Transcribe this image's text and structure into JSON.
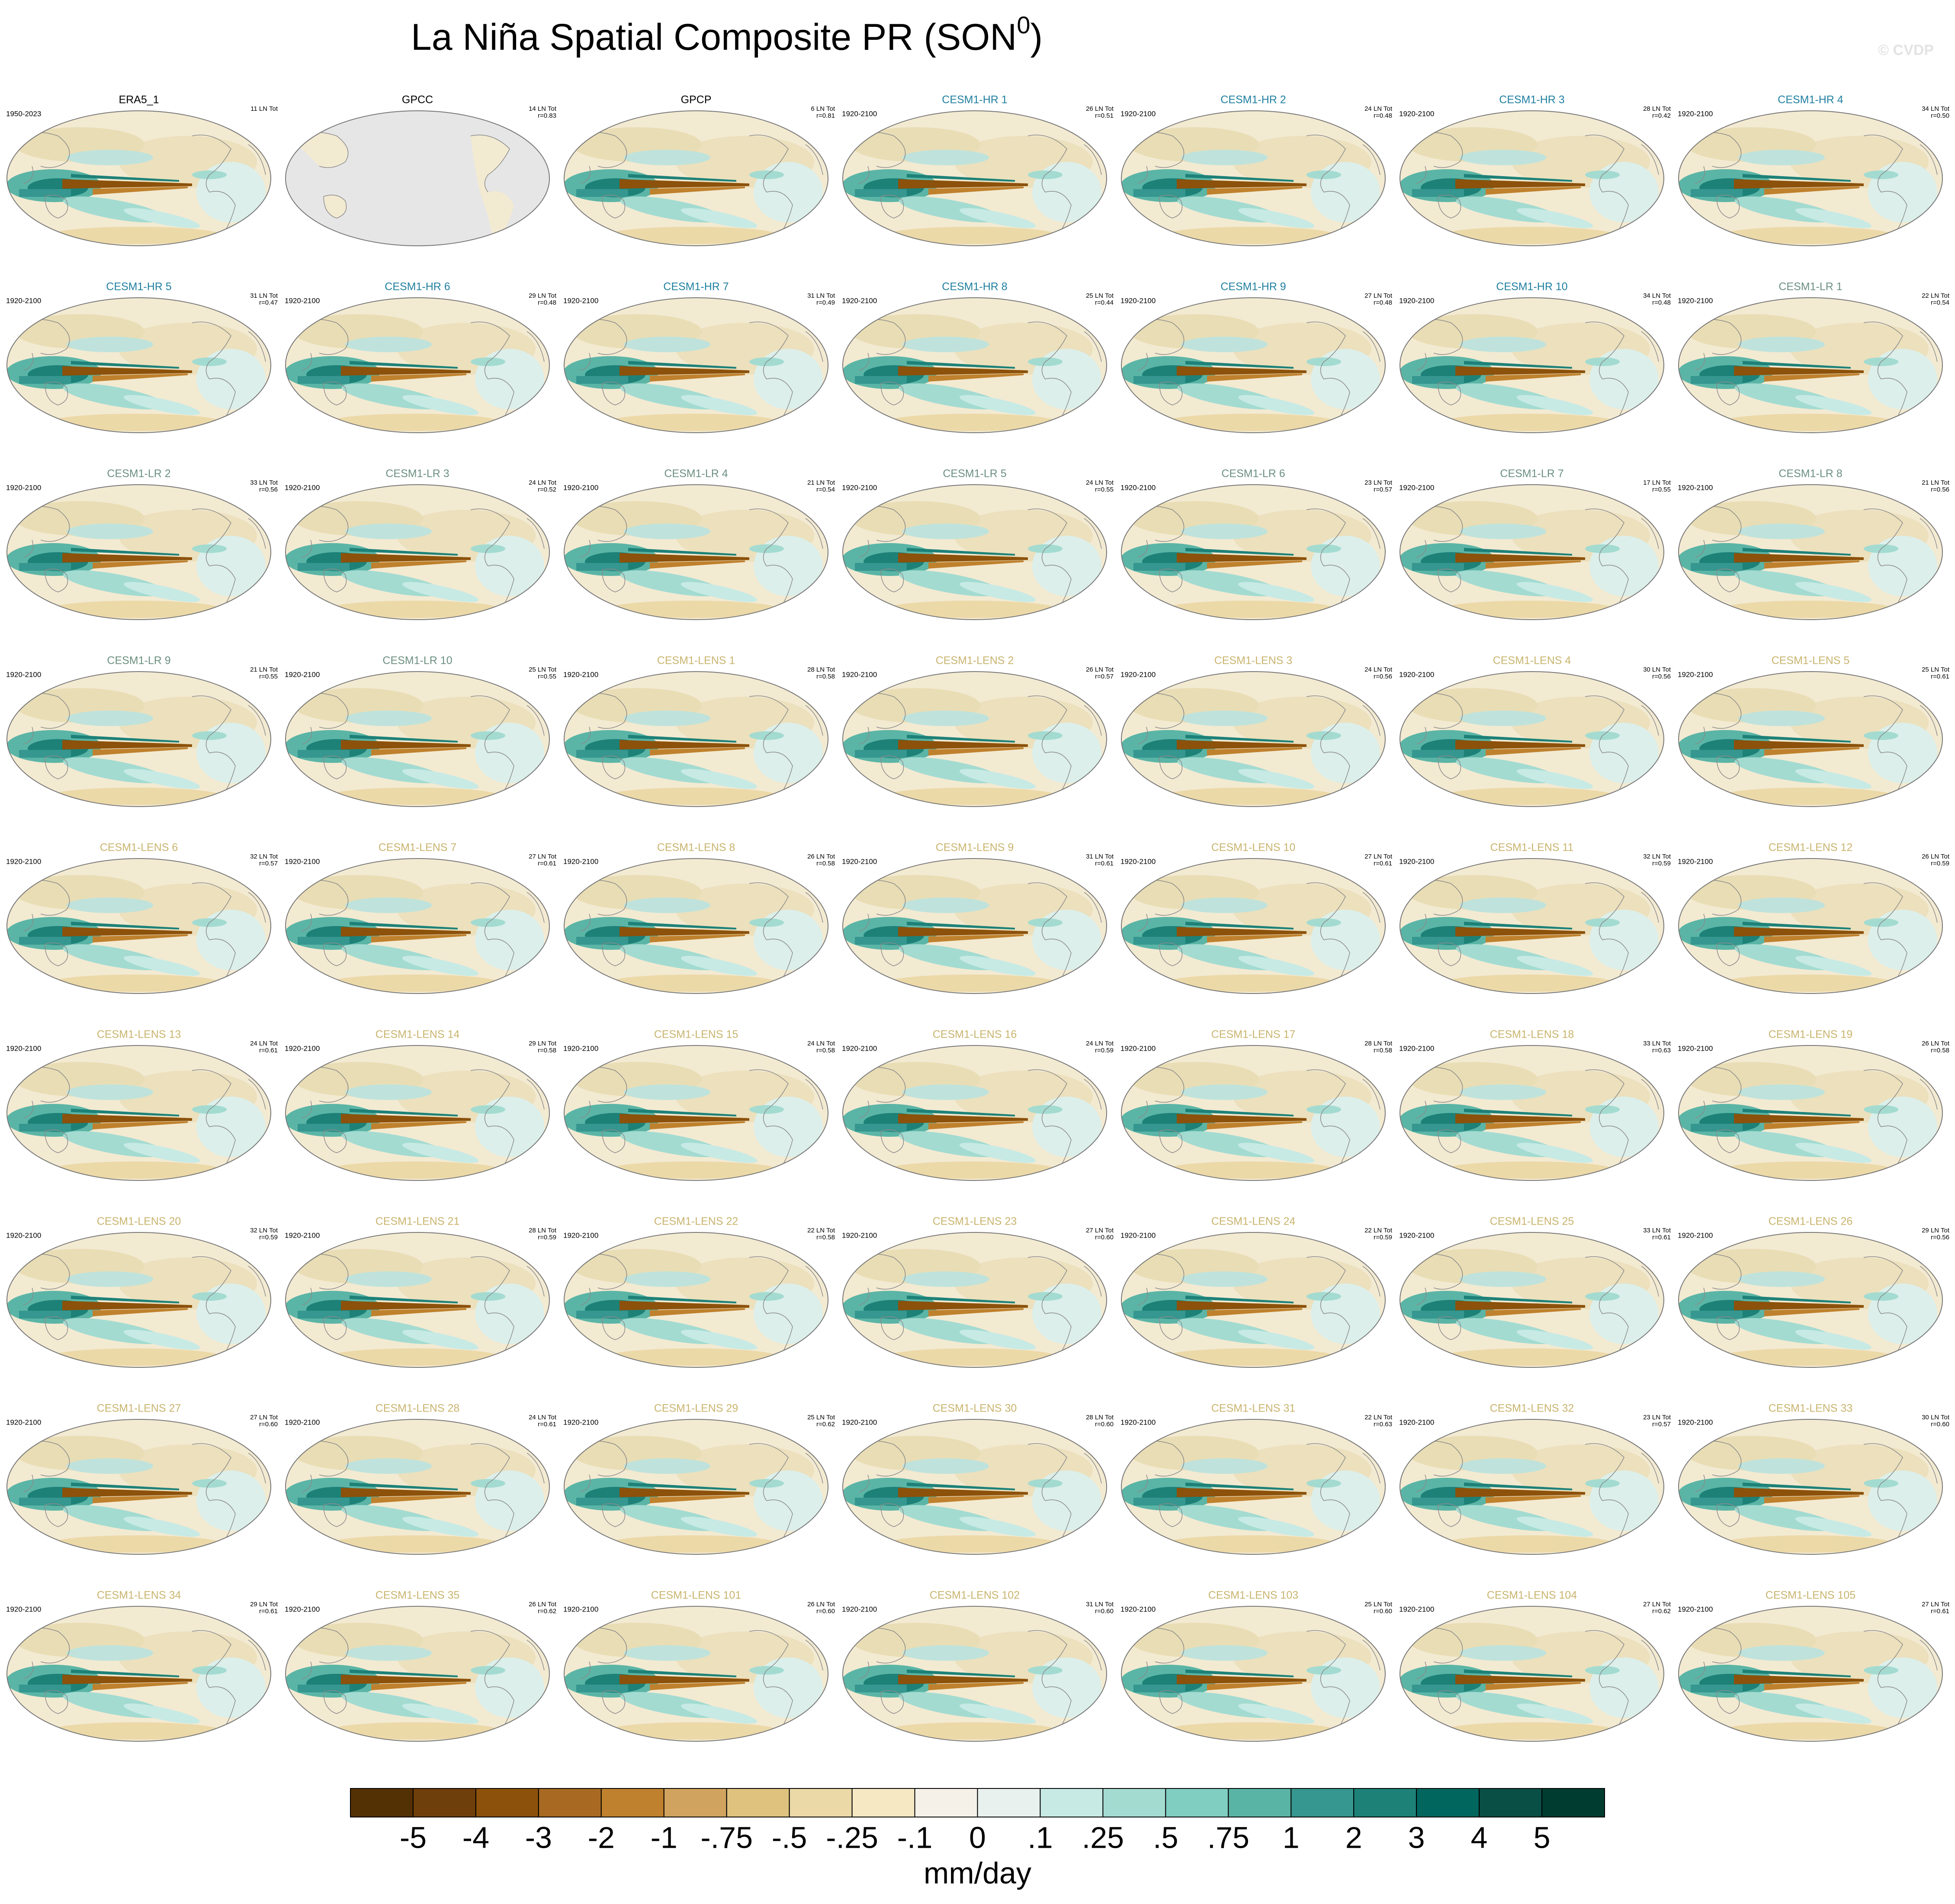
{
  "title_main": "La Niña Spatial Composite PR (SON",
  "title_sup": "0",
  "title_end": ")",
  "credit": "© CVDP",
  "panels": [
    {
      "title": "ERA5_1",
      "period": "1950-2023",
      "count": "11 LN Tot",
      "color": "#000000"
    },
    {
      "title": "GPCC",
      "count": "14 LN Tot",
      "r": "r=0.83",
      "color": "#000000",
      "map_style": "land-only"
    },
    {
      "title": "GPCP",
      "count": "6 LN Tot",
      "r": "r=0.81",
      "color": "#000000"
    },
    {
      "title": "CESM1-HR 1",
      "period": "1920-2100",
      "count": "26 LN Tot",
      "r": "r=0.51",
      "color": "#1f7fa0"
    },
    {
      "title": "CESM1-HR 2",
      "period": "1920-2100",
      "count": "24 LN Tot",
      "r": "r=0.48",
      "color": "#1f7fa0"
    },
    {
      "title": "CESM1-HR 3",
      "period": "1920-2100",
      "count": "28 LN Tot",
      "r": "r=0.42",
      "color": "#1f7fa0"
    },
    {
      "title": "CESM1-HR 4",
      "period": "1920-2100",
      "count": "34 LN Tot",
      "r": "r=0.50",
      "color": "#1f7fa0"
    },
    {
      "title": "CESM1-HR 5",
      "period": "1920-2100",
      "count": "31 LN Tot",
      "r": "r=0.47",
      "color": "#1f7fa0"
    },
    {
      "title": "CESM1-HR 6",
      "period": "1920-2100",
      "count": "29 LN Tot",
      "r": "r=0.48",
      "color": "#1f7fa0"
    },
    {
      "title": "CESM1-HR 7",
      "period": "1920-2100",
      "count": "31 LN Tot",
      "r": "r=0.49",
      "color": "#1f7fa0"
    },
    {
      "title": "CESM1-HR 8",
      "period": "1920-2100",
      "count": "25 LN Tot",
      "r": "r=0.44",
      "color": "#1f7fa0"
    },
    {
      "title": "CESM1-HR 9",
      "period": "1920-2100",
      "count": "27 LN Tot",
      "r": "r=0.48",
      "color": "#1f7fa0"
    },
    {
      "title": "CESM1-HR 10",
      "period": "1920-2100",
      "count": "34 LN Tot",
      "r": "r=0.48",
      "color": "#1f7fa0"
    },
    {
      "title": "CESM1-LR 1",
      "period": "1920-2100",
      "count": "22 LN Tot",
      "r": "r=0.54",
      "color": "#6b8f80"
    },
    {
      "title": "CESM1-LR 2",
      "period": "1920-2100",
      "count": "33 LN Tot",
      "r": "r=0.56",
      "color": "#6b8f80"
    },
    {
      "title": "CESM1-LR 3",
      "period": "1920-2100",
      "count": "24 LN Tot",
      "r": "r=0.52",
      "color": "#6b8f80"
    },
    {
      "title": "CESM1-LR 4",
      "period": "1920-2100",
      "count": "21 LN Tot",
      "r": "r=0.54",
      "color": "#6b8f80"
    },
    {
      "title": "CESM1-LR 5",
      "period": "1920-2100",
      "count": "24 LN Tot",
      "r": "r=0.55",
      "color": "#6b8f80"
    },
    {
      "title": "CESM1-LR 6",
      "period": "1920-2100",
      "count": "23 LN Tot",
      "r": "r=0.57",
      "color": "#6b8f80"
    },
    {
      "title": "CESM1-LR 7",
      "period": "1920-2100",
      "count": "17 LN Tot",
      "r": "r=0.55",
      "color": "#6b8f80"
    },
    {
      "title": "CESM1-LR 8",
      "period": "1920-2100",
      "count": "21 LN Tot",
      "r": "r=0.56",
      "color": "#6b8f80"
    },
    {
      "title": "CESM1-LR 9",
      "period": "1920-2100",
      "count": "21 LN Tot",
      "r": "r=0.55",
      "color": "#6b8f80"
    },
    {
      "title": "CESM1-LR 10",
      "period": "1920-2100",
      "count": "25 LN Tot",
      "r": "r=0.55",
      "color": "#6b8f80"
    },
    {
      "title": "CESM1-LENS 1",
      "period": "1920-2100",
      "count": "28 LN Tot",
      "r": "r=0.58",
      "color": "#c9b46e"
    },
    {
      "title": "CESM1-LENS 2",
      "period": "1920-2100",
      "count": "26 LN Tot",
      "r": "r=0.57",
      "color": "#c9b46e"
    },
    {
      "title": "CESM1-LENS 3",
      "period": "1920-2100",
      "count": "24 LN Tot",
      "r": "r=0.56",
      "color": "#c9b46e"
    },
    {
      "title": "CESM1-LENS 4",
      "period": "1920-2100",
      "count": "30 LN Tot",
      "r": "r=0.56",
      "color": "#c9b46e"
    },
    {
      "title": "CESM1-LENS 5",
      "period": "1920-2100",
      "count": "25 LN Tot",
      "r": "r=0.61",
      "color": "#c9b46e"
    },
    {
      "title": "CESM1-LENS 6",
      "period": "1920-2100",
      "count": "32 LN Tot",
      "r": "r=0.57",
      "color": "#c9b46e"
    },
    {
      "title": "CESM1-LENS 7",
      "period": "1920-2100",
      "count": "27 LN Tot",
      "r": "r=0.61",
      "color": "#c9b46e"
    },
    {
      "title": "CESM1-LENS 8",
      "period": "1920-2100",
      "count": "26 LN Tot",
      "r": "r=0.58",
      "color": "#c9b46e"
    },
    {
      "title": "CESM1-LENS 9",
      "period": "1920-2100",
      "count": "31 LN Tot",
      "r": "r=0.61",
      "color": "#c9b46e"
    },
    {
      "title": "CESM1-LENS 10",
      "period": "1920-2100",
      "count": "27 LN Tot",
      "r": "r=0.61",
      "color": "#c9b46e"
    },
    {
      "title": "CESM1-LENS 11",
      "period": "1920-2100",
      "count": "32 LN Tot",
      "r": "r=0.59",
      "color": "#c9b46e"
    },
    {
      "title": "CESM1-LENS 12",
      "period": "1920-2100",
      "count": "26 LN Tot",
      "r": "r=0.59",
      "color": "#c9b46e"
    },
    {
      "title": "CESM1-LENS 13",
      "period": "1920-2100",
      "count": "24 LN Tot",
      "r": "r=0.61",
      "color": "#c9b46e"
    },
    {
      "title": "CESM1-LENS 14",
      "period": "1920-2100",
      "count": "29 LN Tot",
      "r": "r=0.58",
      "color": "#c9b46e"
    },
    {
      "title": "CESM1-LENS 15",
      "period": "1920-2100",
      "count": "24 LN Tot",
      "r": "r=0.58",
      "color": "#c9b46e"
    },
    {
      "title": "CESM1-LENS 16",
      "period": "1920-2100",
      "count": "24 LN Tot",
      "r": "r=0.59",
      "color": "#c9b46e"
    },
    {
      "title": "CESM1-LENS 17",
      "period": "1920-2100",
      "count": "28 LN Tot",
      "r": "r=0.58",
      "color": "#c9b46e"
    },
    {
      "title": "CESM1-LENS 18",
      "period": "1920-2100",
      "count": "33 LN Tot",
      "r": "r=0.63",
      "color": "#c9b46e"
    },
    {
      "title": "CESM1-LENS 19",
      "period": "1920-2100",
      "count": "26 LN Tot",
      "r": "r=0.58",
      "color": "#c9b46e"
    },
    {
      "title": "CESM1-LENS 20",
      "period": "1920-2100",
      "count": "32 LN Tot",
      "r": "r=0.59",
      "color": "#c9b46e"
    },
    {
      "title": "CESM1-LENS 21",
      "period": "1920-2100",
      "count": "28 LN Tot",
      "r": "r=0.59",
      "color": "#c9b46e"
    },
    {
      "title": "CESM1-LENS 22",
      "period": "1920-2100",
      "count": "22 LN Tot",
      "r": "r=0.58",
      "color": "#c9b46e"
    },
    {
      "title": "CESM1-LENS 23",
      "period": "1920-2100",
      "count": "27 LN Tot",
      "r": "r=0.60",
      "color": "#c9b46e"
    },
    {
      "title": "CESM1-LENS 24",
      "period": "1920-2100",
      "count": "22 LN Tot",
      "r": "r=0.59",
      "color": "#c9b46e"
    },
    {
      "title": "CESM1-LENS 25",
      "period": "1920-2100",
      "count": "33 LN Tot",
      "r": "r=0.61",
      "color": "#c9b46e"
    },
    {
      "title": "CESM1-LENS 26",
      "period": "1920-2100",
      "count": "29 LN Tot",
      "r": "r=0.56",
      "color": "#c9b46e"
    },
    {
      "title": "CESM1-LENS 27",
      "period": "1920-2100",
      "count": "27 LN Tot",
      "r": "r=0.60",
      "color": "#c9b46e"
    },
    {
      "title": "CESM1-LENS 28",
      "period": "1920-2100",
      "count": "24 LN Tot",
      "r": "r=0.61",
      "color": "#c9b46e"
    },
    {
      "title": "CESM1-LENS 29",
      "period": "1920-2100",
      "count": "25 LN Tot",
      "r": "r=0.62",
      "color": "#c9b46e"
    },
    {
      "title": "CESM1-LENS 30",
      "period": "1920-2100",
      "count": "28 LN Tot",
      "r": "r=0.60",
      "color": "#c9b46e"
    },
    {
      "title": "CESM1-LENS 31",
      "period": "1920-2100",
      "count": "22 LN Tot",
      "r": "r=0.63",
      "color": "#c9b46e"
    },
    {
      "title": "CESM1-LENS 32",
      "period": "1920-2100",
      "count": "23 LN Tot",
      "r": "r=0.57",
      "color": "#c9b46e"
    },
    {
      "title": "CESM1-LENS 33",
      "period": "1920-2100",
      "count": "30 LN Tot",
      "r": "r=0.60",
      "color": "#c9b46e"
    },
    {
      "title": "CESM1-LENS 34",
      "period": "1920-2100",
      "count": "29 LN Tot",
      "r": "r=0.61",
      "color": "#c9b46e"
    },
    {
      "title": "CESM1-LENS 35",
      "period": "1920-2100",
      "count": "26 LN Tot",
      "r": "r=0.62",
      "color": "#c9b46e"
    },
    {
      "title": "CESM1-LENS 101",
      "period": "1920-2100",
      "count": "26 LN Tot",
      "r": "r=0.60",
      "color": "#c9b46e"
    },
    {
      "title": "CESM1-LENS 102",
      "period": "1920-2100",
      "count": "31 LN Tot",
      "r": "r=0.60",
      "color": "#c9b46e"
    },
    {
      "title": "CESM1-LENS 103",
      "period": "1920-2100",
      "count": "25 LN Tot",
      "r": "r=0.60",
      "color": "#c9b46e"
    },
    {
      "title": "CESM1-LENS 104",
      "period": "1920-2100",
      "count": "27 LN Tot",
      "r": "r=0.62",
      "color": "#c9b46e"
    },
    {
      "title": "CESM1-LENS 105",
      "period": "1920-2100",
      "count": "27 LN Tot",
      "r": "r=0.61",
      "color": "#c9b46e"
    }
  ],
  "colorbar": {
    "colors": [
      "#543005",
      "#6f3f0b",
      "#8c510a",
      "#a86a22",
      "#bf812d",
      "#d0a35e",
      "#dfc27d",
      "#ecd9a8",
      "#f6e8c3",
      "#f5f1e8",
      "#e8f1ee",
      "#c7eae5",
      "#a3dbd1",
      "#80cdc1",
      "#5ab4a6",
      "#35978f",
      "#1d8178",
      "#01665e",
      "#0a4f45",
      "#003c30"
    ],
    "labels": [
      "-5",
      "-4",
      "-3",
      "-2",
      "-1",
      "-.75",
      "-.5",
      "-.25",
      "-.1",
      "0",
      ".1",
      ".25",
      ".5",
      ".75",
      "1",
      "2",
      "3",
      "4",
      "5"
    ],
    "unit": "mm/day"
  }
}
